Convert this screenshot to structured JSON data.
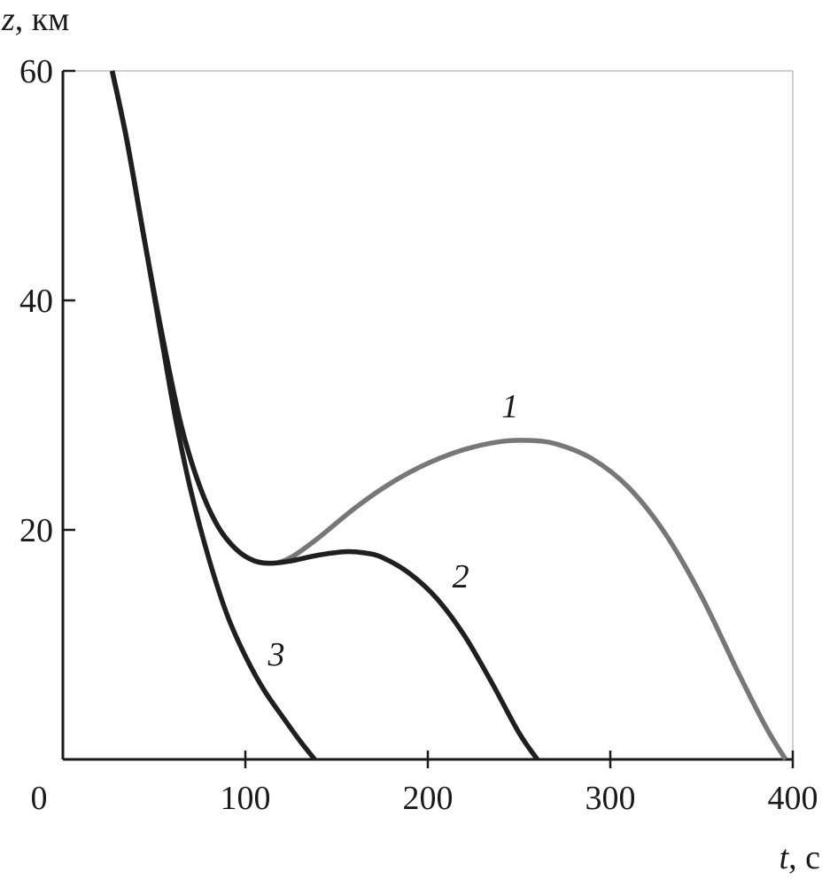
{
  "chart_data": {
    "type": "line",
    "title": "",
    "xlabel": {
      "var": "t",
      "unit": ", с"
    },
    "ylabel": {
      "var": "z",
      "unit": ", км"
    },
    "xlim": [
      0,
      400
    ],
    "ylim": [
      0,
      60
    ],
    "x_ticks": [
      0,
      100,
      200,
      300,
      400
    ],
    "x_tick_labels": [
      "0",
      "100",
      "200",
      "300",
      "400"
    ],
    "y_ticks": [
      20,
      40,
      60
    ],
    "y_tick_labels": [
      "20",
      "40",
      "60"
    ],
    "grid": false,
    "series": [
      {
        "name": "1",
        "color": "#777777",
        "x": [
          27,
          35,
          45,
          55,
          65,
          75,
          85,
          95,
          105,
          115,
          125,
          140,
          160,
          180,
          200,
          220,
          240,
          255,
          270,
          290,
          310,
          330,
          350,
          370,
          385,
          396
        ],
        "y": [
          60,
          54,
          45,
          36.5,
          29,
          23.8,
          20.3,
          18.3,
          17.3,
          17.1,
          17.6,
          19.3,
          21.9,
          24.1,
          25.8,
          27.0,
          27.7,
          27.8,
          27.5,
          26.2,
          23.7,
          19.7,
          14.2,
          7.6,
          2.9,
          0
        ]
      },
      {
        "name": "2",
        "color": "#1f1f1f",
        "x": [
          27,
          35,
          45,
          55,
          65,
          75,
          85,
          95,
          105,
          115,
          125,
          140,
          155,
          165,
          175,
          190,
          205,
          220,
          235,
          250,
          260
        ],
        "y": [
          60,
          54,
          45,
          36.5,
          29,
          23.8,
          20.3,
          18.3,
          17.3,
          17.1,
          17.3,
          17.8,
          18.1,
          18.0,
          17.6,
          16.2,
          14.0,
          10.8,
          6.7,
          2.3,
          0
        ]
      },
      {
        "name": "3",
        "color": "#1f1f1f",
        "x": [
          27,
          35,
          45,
          55,
          62,
          70,
          80,
          90,
          100,
          110,
          120,
          130,
          138
        ],
        "y": [
          60,
          54,
          45,
          35.8,
          29.5,
          23.5,
          17.5,
          12.6,
          9.0,
          6.1,
          3.8,
          1.6,
          0
        ]
      }
    ],
    "annotations": [
      {
        "text": "1",
        "series": "1",
        "x": 245,
        "y": 29.8
      },
      {
        "text": "2",
        "series": "2",
        "x": 218,
        "y": 15.0
      },
      {
        "text": "3",
        "series": "3",
        "x": 117,
        "y": 8.2
      }
    ]
  }
}
